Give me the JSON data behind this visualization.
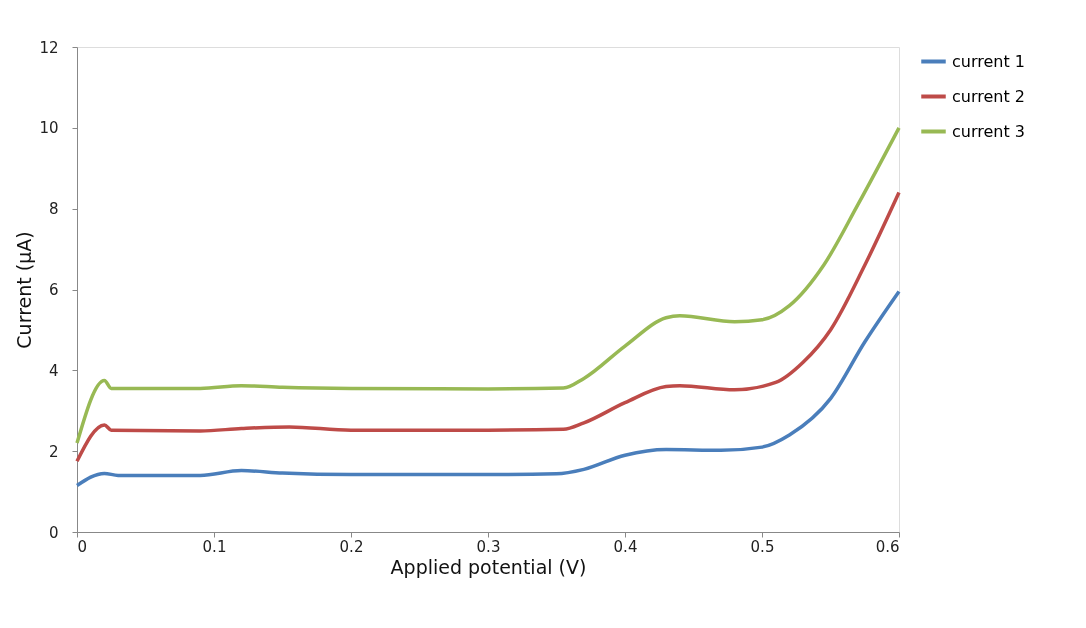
{
  "chart_data": {
    "type": "line",
    "xlabel": "Applied potential (V)",
    "ylabel": "Current (µA)",
    "xlim": [
      0,
      0.6
    ],
    "xticks": [
      0,
      0.1,
      0.2,
      0.3,
      0.4,
      0.5,
      0.6
    ],
    "ylim": [
      0,
      12
    ],
    "yticks": [
      0,
      2,
      4,
      6,
      8,
      10,
      12
    ],
    "grid": false,
    "legend": "right",
    "marker": "none",
    "line_style": "solid",
    "series": [
      {
        "name": "current 1",
        "color": "#4a7ebb",
        "x": [
          0,
          0.02,
          0.03,
          0.09,
          0.12,
          0.15,
          0.2,
          0.3,
          0.35,
          0.37,
          0.4,
          0.43,
          0.47,
          0.5,
          0.52,
          0.55,
          0.575,
          0.6
        ],
        "values": [
          1.15,
          1.45,
          1.4,
          1.4,
          1.52,
          1.46,
          1.42,
          1.42,
          1.44,
          1.55,
          1.9,
          2.04,
          2.02,
          2.1,
          2.4,
          3.3,
          4.7,
          5.95
        ]
      },
      {
        "name": "current 2",
        "color": "#be4b48",
        "x": [
          0,
          0.02,
          0.025,
          0.09,
          0.12,
          0.155,
          0.2,
          0.3,
          0.355,
          0.37,
          0.4,
          0.43,
          0.44,
          0.48,
          0.51,
          0.53,
          0.55,
          0.575,
          0.6
        ],
        "values": [
          1.75,
          2.65,
          2.52,
          2.5,
          2.56,
          2.6,
          2.52,
          2.52,
          2.54,
          2.7,
          3.2,
          3.6,
          3.62,
          3.52,
          3.7,
          4.2,
          5.0,
          6.6,
          8.4
        ]
      },
      {
        "name": "current 3",
        "color": "#98b954",
        "x": [
          0,
          0.02,
          0.025,
          0.09,
          0.12,
          0.15,
          0.2,
          0.3,
          0.355,
          0.37,
          0.4,
          0.43,
          0.44,
          0.48,
          0.5,
          0.52,
          0.545,
          0.57,
          0.6
        ],
        "values": [
          2.2,
          3.75,
          3.55,
          3.55,
          3.62,
          3.58,
          3.55,
          3.54,
          3.56,
          3.8,
          4.6,
          5.3,
          5.35,
          5.2,
          5.25,
          5.6,
          6.6,
          8.1,
          10.0
        ]
      }
    ]
  }
}
